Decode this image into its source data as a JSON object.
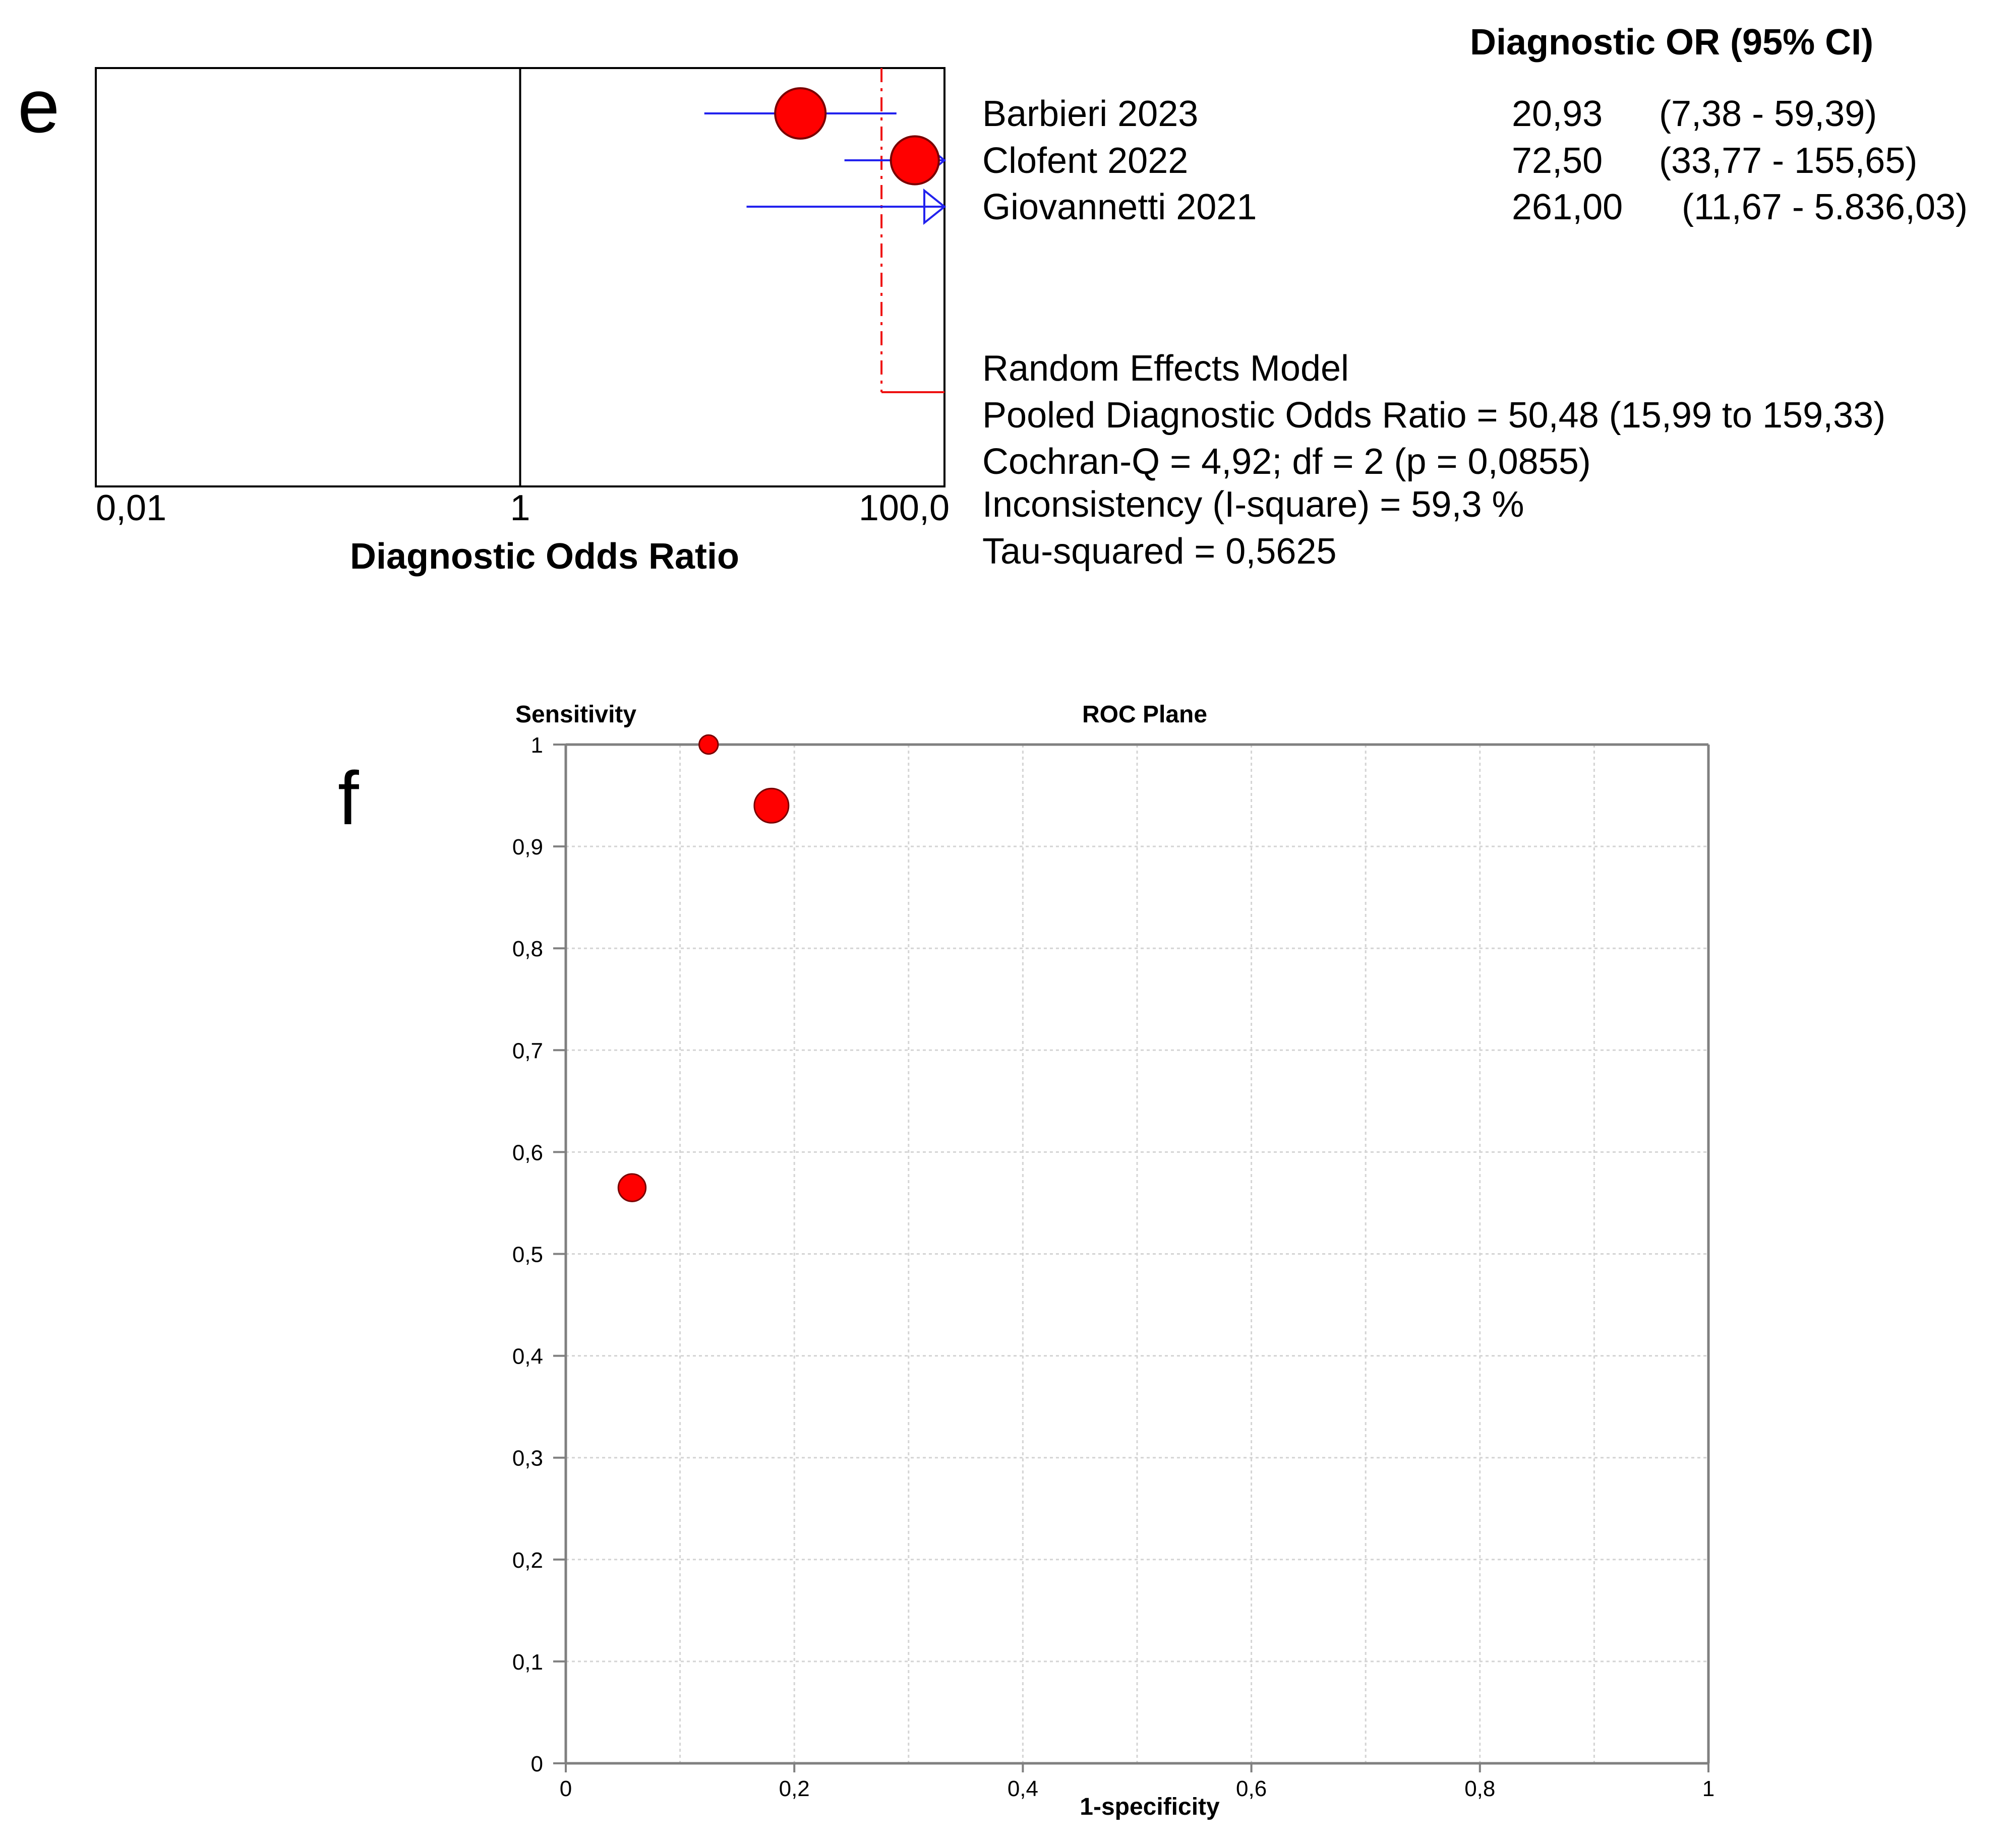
{
  "panel_labels": {
    "e": "e",
    "f": "f"
  },
  "colors": {
    "marker_fill": "#ff0000",
    "marker_stroke": "#7a0000",
    "ci_line": "#2222ee",
    "pooled_line": "#ee1111",
    "axis": "#000000",
    "roc_axis": "#808080",
    "grid": "#d4d4d4"
  },
  "chart_data": [
    {
      "type": "forest",
      "x_scale": "log10",
      "xlim": [
        0.01,
        100.0
      ],
      "xlabel": "Diagnostic Odds Ratio",
      "x_ticks": [
        {
          "value": 0.01,
          "label": "0,01"
        },
        {
          "value": 1,
          "label": "1"
        },
        {
          "value": 100.0,
          "label": "100,0"
        }
      ],
      "reference_line": 1,
      "column_header": "Diagnostic OR (95% CI)",
      "studies": [
        {
          "name": "Barbieri 2023",
          "dor": 20.93,
          "ci_low": 7.38,
          "ci_high": 59.39,
          "dor_label": "20,93",
          "ci_label": "(7,38 - 59,39)",
          "weight": 1.0
        },
        {
          "name": "Clofent 2022",
          "dor": 72.5,
          "ci_low": 33.77,
          "ci_high": 155.65,
          "dor_label": "72,50",
          "ci_label": "(33,77 - 155,65)",
          "weight": 0.95
        },
        {
          "name": "Giovannetti 2021",
          "dor": 261.0,
          "ci_low": 11.67,
          "ci_high": 5836.03,
          "dor_label": "261,00",
          "ci_label": "(11,67 - 5.836,03)",
          "weight": 0.0
        }
      ],
      "pooled": {
        "dor": 50.48,
        "ci_low": 15.99,
        "ci_high": 159.33
      },
      "summary_lines": [
        "Random Effects Model",
        "Pooled Diagnostic Odds Ratio = 50,48 (15,99 to 159,33)",
        "Cochran-Q = 4,92; df =  2 (p = 0,0855)",
        "Inconsistency (I-square) = 59,3 %",
        "Tau-squared = 0,5625"
      ]
    },
    {
      "type": "scatter",
      "title": "ROC Plane",
      "xlabel": "1-specificity",
      "ylabel": "Sensitivity",
      "xlim": [
        0,
        1
      ],
      "ylim": [
        0,
        1
      ],
      "grid": true,
      "x_ticks": [
        {
          "value": 0,
          "label": "0"
        },
        {
          "value": 0.2,
          "label": "0,2"
        },
        {
          "value": 0.4,
          "label": "0,4"
        },
        {
          "value": 0.6,
          "label": "0,6"
        },
        {
          "value": 0.8,
          "label": "0,8"
        },
        {
          "value": 1,
          "label": "1"
        }
      ],
      "y_ticks": [
        {
          "value": 0,
          "label": "0"
        },
        {
          "value": 0.1,
          "label": "0,1"
        },
        {
          "value": 0.2,
          "label": "0,2"
        },
        {
          "value": 0.3,
          "label": "0,3"
        },
        {
          "value": 0.4,
          "label": "0,4"
        },
        {
          "value": 0.5,
          "label": "0,5"
        },
        {
          "value": 0.6,
          "label": "0,6"
        },
        {
          "value": 0.7,
          "label": "0,7"
        },
        {
          "value": 0.8,
          "label": "0,8"
        },
        {
          "value": 0.9,
          "label": "0,9"
        },
        {
          "value": 1,
          "label": "1"
        }
      ],
      "points": [
        {
          "x": 0.125,
          "y": 1.0,
          "size": 0.55
        },
        {
          "x": 0.18,
          "y": 0.94,
          "size": 1.0
        },
        {
          "x": 0.058,
          "y": 0.565,
          "size": 0.8
        }
      ]
    }
  ]
}
